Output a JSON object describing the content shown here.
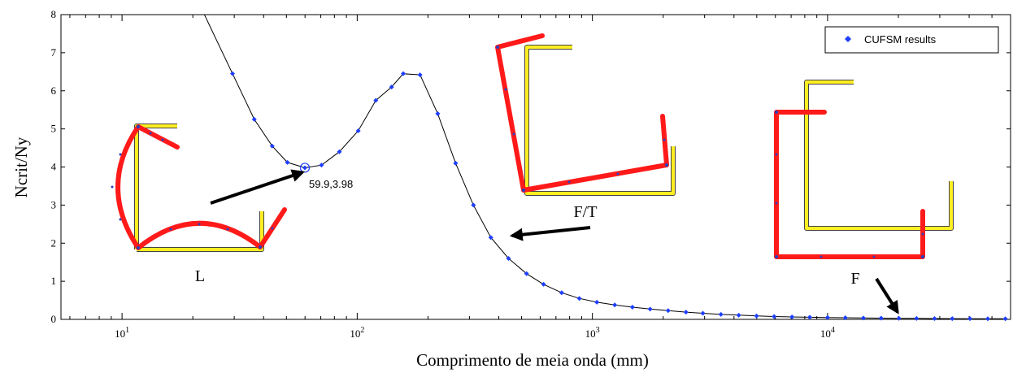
{
  "chart_data": {
    "type": "scatter",
    "xscale": "log",
    "xlim": [
      5.5,
      60000
    ],
    "ylim": [
      0,
      8
    ],
    "xlabel": "Comprimento de meia onda (mm)",
    "ylabel": "Ncrit/Ny",
    "yticks": [
      "0",
      "1",
      "2",
      "3",
      "4",
      "5",
      "6",
      "7",
      "8"
    ],
    "xticks": [
      {
        "value": 10,
        "base": "10",
        "exp": "1"
      },
      {
        "value": 100,
        "base": "10",
        "exp": "2"
      },
      {
        "value": 1000,
        "base": "10",
        "exp": "3"
      },
      {
        "value": 10000,
        "base": "10",
        "exp": "4"
      }
    ],
    "grid": false,
    "legend": {
      "position": "top-right",
      "entries": [
        "CUFSM results"
      ]
    },
    "series": [
      {
        "name": "CUFSM results",
        "color": "#1f3fff",
        "line_color": "#000000",
        "x": [
          20.5,
          29.5,
          36.5,
          43.5,
          50.5,
          59.9,
          70.5,
          84,
          101,
          120,
          140,
          157,
          185,
          220,
          262,
          312,
          370,
          440,
          525,
          620,
          740,
          880,
          1045,
          1245,
          1480,
          1760,
          2100,
          2500,
          2950,
          3520,
          4190,
          4990,
          5930,
          7060,
          8400,
          10000,
          11900,
          14200,
          16900,
          20100,
          23900,
          28500,
          33900,
          40300,
          48000,
          57000
        ],
        "y": [
          8.5,
          6.45,
          5.25,
          4.55,
          4.12,
          3.98,
          4.05,
          4.4,
          4.95,
          5.75,
          6.1,
          6.45,
          6.42,
          5.4,
          4.1,
          3.0,
          2.15,
          1.6,
          1.2,
          0.92,
          0.7,
          0.55,
          0.45,
          0.38,
          0.32,
          0.27,
          0.23,
          0.19,
          0.16,
          0.13,
          0.11,
          0.09,
          0.075,
          0.065,
          0.055,
          0.048,
          0.042,
          0.036,
          0.032,
          0.028,
          0.025,
          0.022,
          0.02,
          0.018,
          0.016,
          0.015
        ]
      }
    ],
    "annotations": [
      {
        "label": "59.9,3.98",
        "x": 59.9,
        "y": 3.98
      },
      {
        "label": "L"
      },
      {
        "label": "F/T"
      },
      {
        "label": "F"
      }
    ]
  },
  "colors": {
    "member": "#ff1a1a",
    "reference": "#ffee22",
    "outline": "#444444",
    "node": "#2a3fbf"
  }
}
